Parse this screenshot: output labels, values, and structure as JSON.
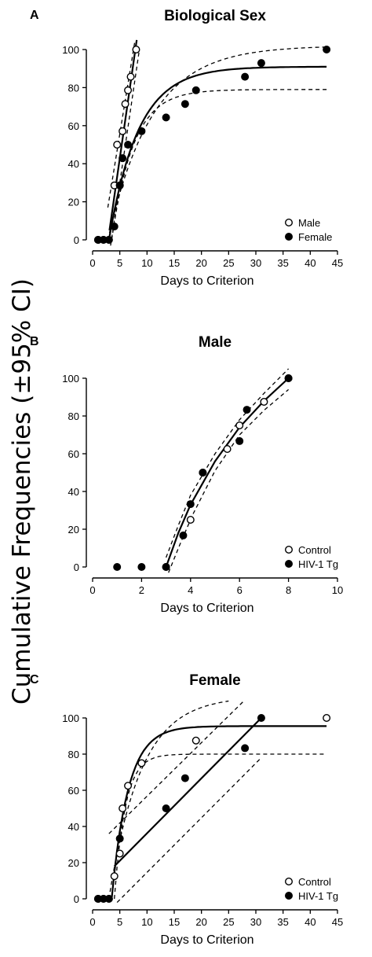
{
  "figure": {
    "ylabel": "Cumulative Frequencies (±95% CI)"
  },
  "chart_data": [
    {
      "type": "scatter",
      "panel_label": "A",
      "title": "Biological Sex",
      "xlabel": "Days to Criterion",
      "ylabel": "",
      "xlim": [
        0,
        45
      ],
      "ylim": [
        0,
        100
      ],
      "xticks": [
        0,
        5,
        10,
        15,
        20,
        25,
        30,
        35,
        40,
        45
      ],
      "yticks": [
        0,
        20,
        40,
        60,
        80,
        100
      ],
      "grid": false,
      "legend_position": "bottom-right",
      "series": [
        {
          "name": "Male",
          "marker": "open",
          "points": [
            [
              1,
              0
            ],
            [
              2,
              0
            ],
            [
              3,
              0
            ],
            [
              4,
              28.6
            ],
            [
              4.5,
              50
            ],
            [
              5,
              28.6
            ],
            [
              5.5,
              57.1
            ],
            [
              6,
              71.4
            ],
            [
              6.5,
              78.6
            ],
            [
              7,
              85.7
            ],
            [
              8,
              100
            ]
          ],
          "fit": {
            "kind": "line",
            "x": [
              3.1,
              8.1
            ],
            "y": [
              5,
              105
            ],
            "ci_upper": {
              "x": [
                2.8,
                7.8
              ],
              "y": [
                17,
                105
              ]
            },
            "ci_lower": {
              "x": [
                3.3,
                8.6
              ],
              "y": [
                -3,
                100
              ]
            }
          }
        },
        {
          "name": "Female",
          "marker": "filled",
          "points": [
            [
              1,
              0
            ],
            [
              2,
              0
            ],
            [
              3,
              0
            ],
            [
              4,
              7
            ],
            [
              5,
              28.6
            ],
            [
              5.5,
              42.9
            ],
            [
              6.5,
              50
            ],
            [
              9,
              57.1
            ],
            [
              13.5,
              64.3
            ],
            [
              17,
              71.4
            ],
            [
              19,
              78.6
            ],
            [
              28,
              85.7
            ],
            [
              31,
              92.9
            ],
            [
              43,
              100
            ]
          ],
          "fit": {
            "kind": "exp",
            "plateau": 91,
            "x0": 3,
            "k": 0.185,
            "x_end": 43,
            "ci_upper": {
              "plateau": 102,
              "k": 0.125,
              "x0": 2.8,
              "x_end": 43
            },
            "ci_lower": {
              "plateau": 79,
              "k": 0.25,
              "x0": 3.5,
              "x_end": 43
            }
          }
        }
      ]
    },
    {
      "type": "scatter",
      "panel_label": "B",
      "title": "Male",
      "xlabel": "Days to Criterion",
      "ylabel": "",
      "xlim": [
        0,
        10
      ],
      "ylim": [
        0,
        100
      ],
      "xticks": [
        0,
        2,
        4,
        6,
        8,
        10
      ],
      "yticks": [
        0,
        20,
        40,
        60,
        80,
        100
      ],
      "grid": false,
      "legend_position": "bottom-right",
      "series": [
        {
          "name": "Control",
          "marker": "open",
          "points": [
            [
              3,
              0
            ],
            [
              4,
              25
            ],
            [
              4.5,
              50
            ],
            [
              5.5,
              62.5
            ],
            [
              6,
              75
            ],
            [
              7,
              87.5
            ],
            [
              8,
              100
            ]
          ]
        },
        {
          "name": "HIV-1 Tg",
          "marker": "filled",
          "points": [
            [
              1,
              0
            ],
            [
              2,
              0
            ],
            [
              3,
              0
            ],
            [
              3.7,
              16.7
            ],
            [
              4,
              33.3
            ],
            [
              4.5,
              50
            ],
            [
              6,
              66.7
            ],
            [
              6.3,
              83.3
            ],
            [
              8,
              100
            ]
          ]
        }
      ],
      "fit": {
        "kind": "curve",
        "x": [
          3,
          3.5,
          4,
          5,
          6,
          7,
          8
        ],
        "y": [
          0,
          18,
          33,
          56,
          74,
          88,
          100
        ],
        "ci_upper": {
          "x": [
            3,
            3.5,
            4,
            5,
            6,
            7,
            8
          ],
          "y": [
            5,
            22,
            38,
            60,
            78,
            92,
            105
          ]
        },
        "ci_lower": {
          "x": [
            3.1,
            3.6,
            4.1,
            5,
            6,
            7,
            8
          ],
          "y": [
            -3,
            13,
            28,
            51,
            70,
            83,
            94
          ]
        }
      }
    },
    {
      "type": "scatter",
      "panel_label": "C",
      "title": "Female",
      "xlabel": "Days to Criterion",
      "ylabel": "",
      "xlim": [
        0,
        45
      ],
      "ylim": [
        0,
        100
      ],
      "xticks": [
        0,
        5,
        10,
        15,
        20,
        25,
        30,
        35,
        40,
        45
      ],
      "yticks": [
        0,
        20,
        40,
        60,
        80,
        100
      ],
      "grid": false,
      "legend_position": "bottom-right",
      "series": [
        {
          "name": "Control",
          "marker": "open",
          "points": [
            [
              1,
              0
            ],
            [
              2,
              0
            ],
            [
              3,
              0
            ],
            [
              4,
              12.5
            ],
            [
              5,
              25
            ],
            [
              5.5,
              50
            ],
            [
              6.5,
              62.5
            ],
            [
              9,
              75
            ],
            [
              19,
              87.5
            ],
            [
              43,
              100
            ]
          ],
          "fit": {
            "kind": "exp",
            "plateau": 95.5,
            "x0": 3.5,
            "k": 0.33,
            "x_end": 43,
            "ci_upper": {
              "plateau": 112,
              "k": 0.17,
              "x0": 3,
              "x_end": 25
            },
            "ci_lower": {
              "plateau": 80,
              "k": 0.5,
              "x0": 4,
              "x_end": 43
            }
          }
        },
        {
          "name": "HIV-1 Tg",
          "marker": "filled",
          "points": [
            [
              1,
              0
            ],
            [
              2,
              0
            ],
            [
              3,
              0
            ],
            [
              5,
              33.3
            ],
            [
              13.5,
              50
            ],
            [
              17,
              66.7
            ],
            [
              28,
              83.3
            ],
            [
              31,
              100
            ]
          ],
          "fit": {
            "kind": "line",
            "x": [
              4,
              31
            ],
            "y": [
              18,
              100
            ],
            "ci_upper": {
              "x": [
                3,
                28
              ],
              "y": [
                36,
                110
              ]
            },
            "ci_lower": {
              "x": [
                4.5,
                31
              ],
              "y": [
                -2,
                78
              ]
            }
          }
        }
      ]
    }
  ]
}
